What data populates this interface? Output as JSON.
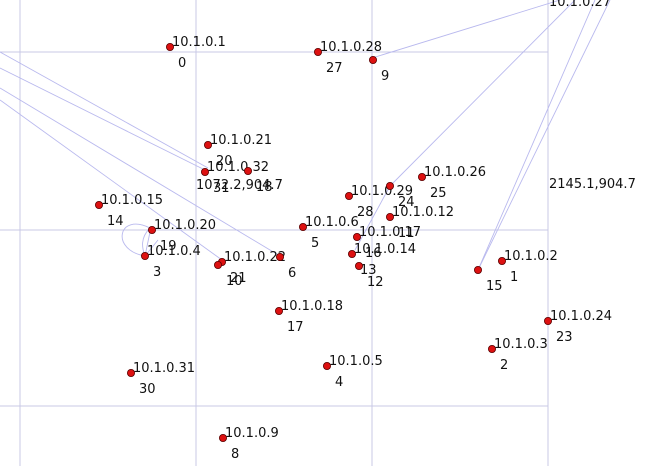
{
  "colors": {
    "node_fill": "#dd1111",
    "grid": "#c8c8e6",
    "link": "#b9b9ee",
    "text": "#111111"
  },
  "corner_labels": {
    "top_right": "10.1.0.27",
    "right": "2145.1,904.7",
    "middle": "1072.2,904.7"
  },
  "nodes": [
    {
      "id": "0",
      "ip": "10.1.0.1"
    },
    {
      "id": "27",
      "ip": "10.1.0.28"
    },
    {
      "id": "9",
      "ip": ""
    },
    {
      "id": "20",
      "ip": "10.1.0.21"
    },
    {
      "id": "31",
      "ip": "10.1.0.32"
    },
    {
      "id": "18",
      "ip": ""
    },
    {
      "id": "14",
      "ip": "10.1.0.15"
    },
    {
      "id": "19",
      "ip": "10.1.0.20"
    },
    {
      "id": "3",
      "ip": "10.1.0.4"
    },
    {
      "id": "21",
      "ip": "10.1.0.22"
    },
    {
      "id": "10",
      "ip": ""
    },
    {
      "id": "6",
      "ip": ""
    },
    {
      "id": "5",
      "ip": "10.1.0.6"
    },
    {
      "id": "28",
      "ip": "10.1.0.29"
    },
    {
      "id": "24",
      "ip": ""
    },
    {
      "id": "25",
      "ip": "10.1.0.26"
    },
    {
      "id": "11",
      "ip": "10.1.0.12"
    },
    {
      "id": "16",
      "ip": "10.1.0.17"
    },
    {
      "id": "13",
      "ip": "10.1.0.14"
    },
    {
      "id": "12",
      "ip": ""
    },
    {
      "id": "15",
      "ip": ""
    },
    {
      "id": "1",
      "ip": "10.1.0.2"
    },
    {
      "id": "17",
      "ip": "10.1.0.18"
    },
    {
      "id": "23",
      "ip": "10.1.0.24"
    },
    {
      "id": "2",
      "ip": "10.1.0.3"
    },
    {
      "id": "30",
      "ip": "10.1.0.31"
    },
    {
      "id": "4",
      "ip": "10.1.0.5"
    },
    {
      "id": "8",
      "ip": "10.1.0.9"
    }
  ]
}
